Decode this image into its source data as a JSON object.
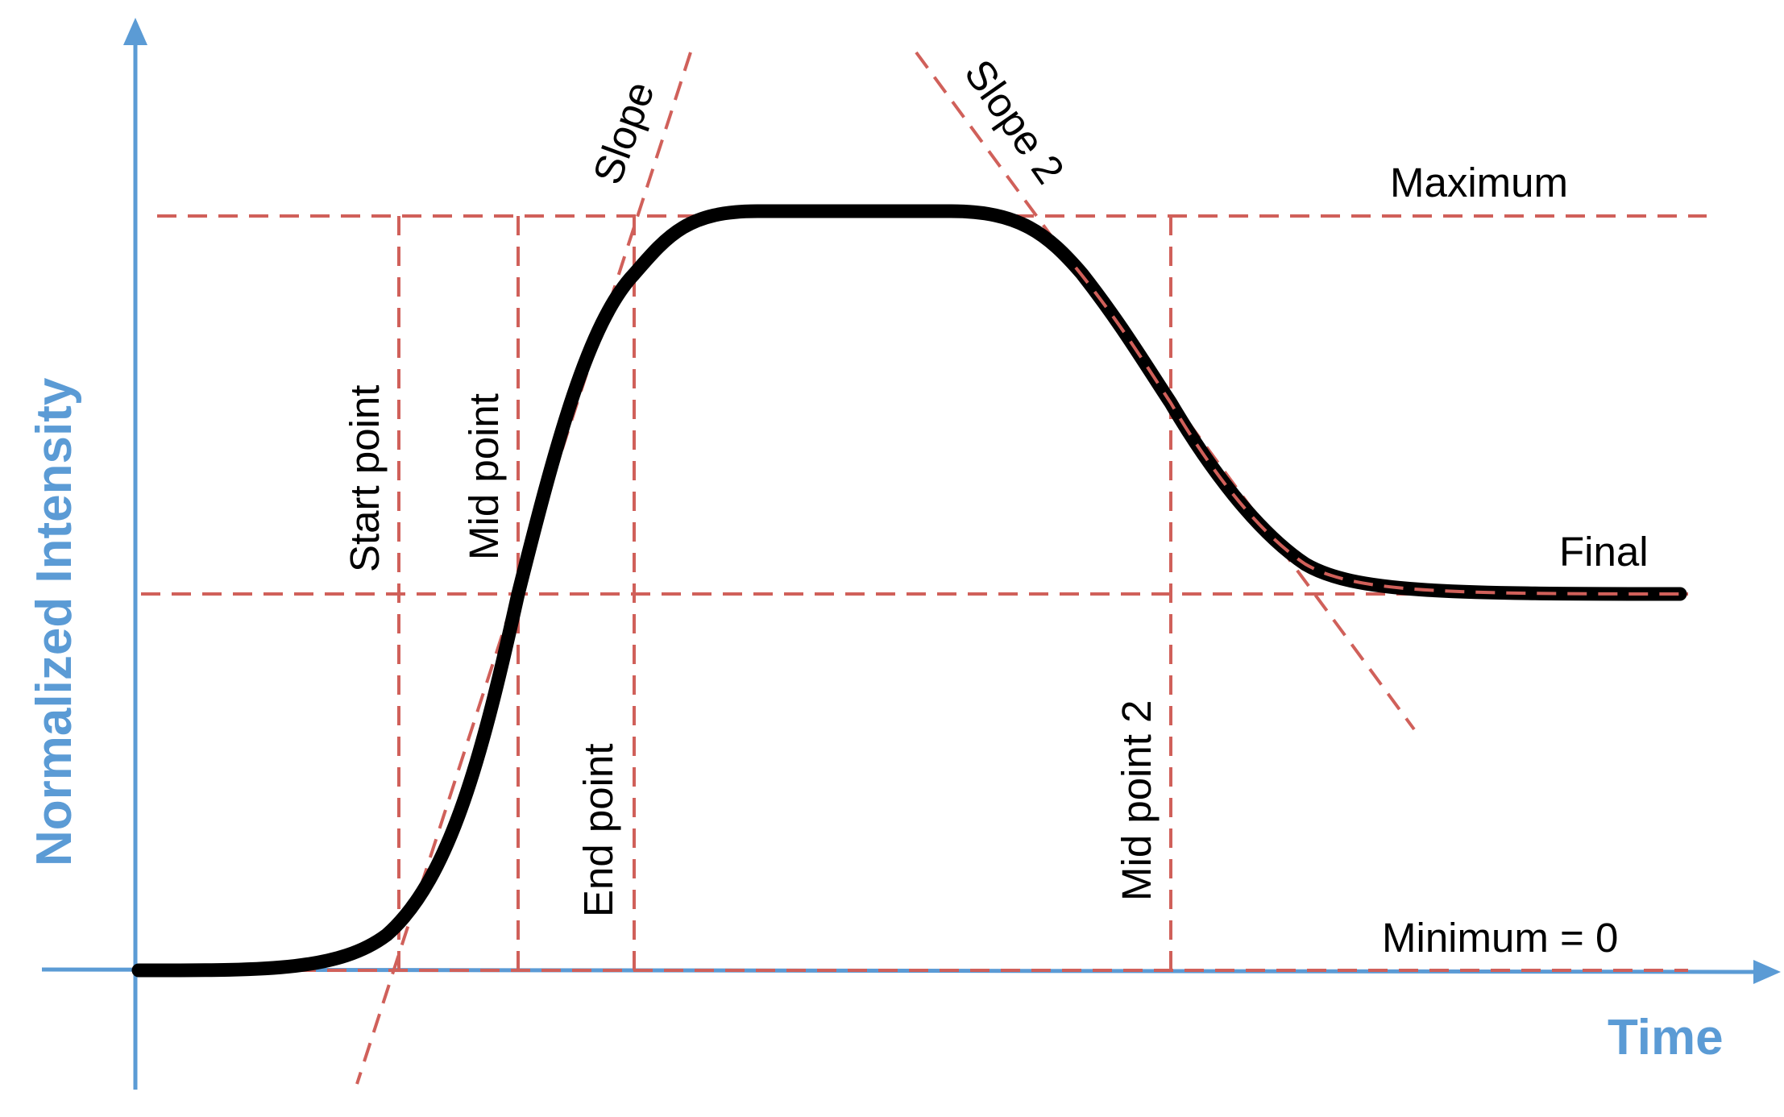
{
  "axes": {
    "y_label": "Normalized Intensity",
    "x_label": "Time",
    "color": "#5b9bd5"
  },
  "reference_color": "#d0605a",
  "curve_color": "#000000",
  "labels": {
    "maximum": "Maximum",
    "final": "Final",
    "minimum": "Minimum = 0",
    "start_point": "Start point",
    "mid_point": "Mid point",
    "end_point": "End point",
    "mid_point_2": "Mid point 2",
    "slope": "Slope",
    "slope_2": "Slope 2"
  }
}
